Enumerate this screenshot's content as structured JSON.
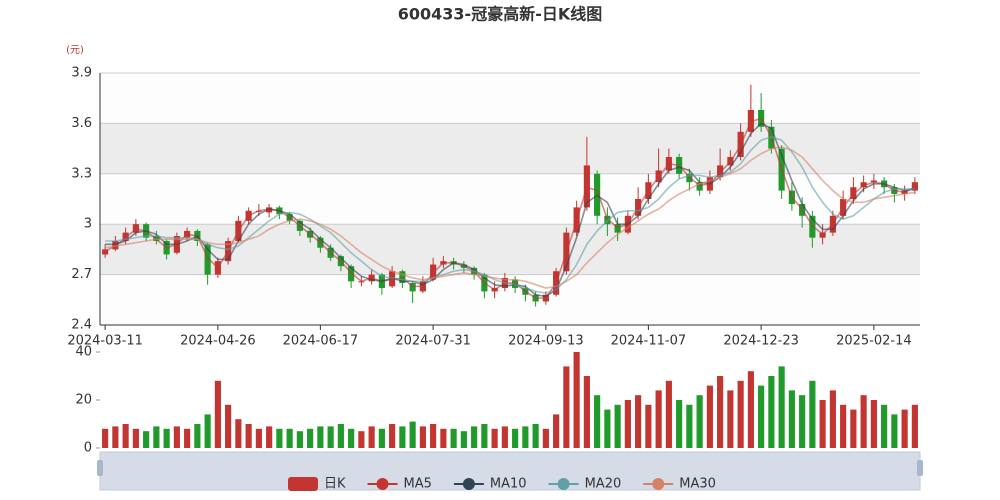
{
  "chart_data": [
    {
      "type": "candlestick",
      "title": "600433-冠豪高新-日K线图",
      "y_label": "(元)",
      "name": "日K",
      "up_color": "#c23531",
      "down_color": "#1f9a2b",
      "grid_bands": true,
      "legend": "bottom",
      "categories": [
        "2024-03-11",
        null,
        null,
        null,
        null,
        null,
        null,
        null,
        null,
        null,
        null,
        "2024-04-26",
        null,
        null,
        null,
        null,
        null,
        null,
        null,
        null,
        null,
        "2024-06-17",
        null,
        null,
        null,
        null,
        null,
        null,
        null,
        null,
        null,
        null,
        "2024-07-31",
        null,
        null,
        null,
        null,
        null,
        null,
        null,
        null,
        null,
        null,
        "2024-09-13",
        null,
        null,
        null,
        null,
        null,
        null,
        null,
        null,
        null,
        "2024-11-07",
        null,
        null,
        null,
        null,
        null,
        null,
        null,
        null,
        null,
        null,
        "2024-12-23",
        null,
        null,
        null,
        null,
        null,
        null,
        null,
        null,
        null,
        null,
        "2025-02-14",
        null,
        null,
        null,
        null
      ],
      "open": [
        2.82,
        2.85,
        2.9,
        2.95,
        3.0,
        2.93,
        2.9,
        2.83,
        2.92,
        2.96,
        2.88,
        2.7,
        2.78,
        2.9,
        3.02,
        3.08,
        3.07,
        3.1,
        3.06,
        3.02,
        2.96,
        2.92,
        2.86,
        2.81,
        2.75,
        2.66,
        2.66,
        2.7,
        2.63,
        2.72,
        2.65,
        2.6,
        2.67,
        2.76,
        2.78,
        2.76,
        2.74,
        2.7,
        2.6,
        2.62,
        2.67,
        2.62,
        2.58,
        2.54,
        2.58,
        2.72,
        2.95,
        3.1,
        3.3,
        3.05,
        3.0,
        2.95,
        3.05,
        3.15,
        3.25,
        3.32,
        3.4,
        3.3,
        3.25,
        3.2,
        3.28,
        3.35,
        3.4,
        3.55,
        3.68,
        3.58,
        3.45,
        3.2,
        3.12,
        3.05,
        2.92,
        2.95,
        3.05,
        3.15,
        3.22,
        3.25,
        3.26,
        3.22,
        3.18,
        3.2
      ],
      "close": [
        2.85,
        2.9,
        2.95,
        3.0,
        2.92,
        2.9,
        2.82,
        2.93,
        2.96,
        2.9,
        2.7,
        2.78,
        2.9,
        3.02,
        3.08,
        3.08,
        3.1,
        3.06,
        3.02,
        2.96,
        2.92,
        2.86,
        2.8,
        2.75,
        2.66,
        2.66,
        2.7,
        2.62,
        2.72,
        2.65,
        2.6,
        2.66,
        2.76,
        2.78,
        2.76,
        2.74,
        2.7,
        2.6,
        2.62,
        2.68,
        2.62,
        2.58,
        2.54,
        2.58,
        2.72,
        2.95,
        3.1,
        3.35,
        3.05,
        3.0,
        2.95,
        3.05,
        3.15,
        3.25,
        3.32,
        3.4,
        3.3,
        3.25,
        3.2,
        3.28,
        3.35,
        3.4,
        3.55,
        3.68,
        3.58,
        3.45,
        3.2,
        3.12,
        3.05,
        2.92,
        2.95,
        3.05,
        3.15,
        3.22,
        3.25,
        3.26,
        3.22,
        3.18,
        3.2,
        3.25
      ],
      "high": [
        2.88,
        2.93,
        2.98,
        3.03,
        3.01,
        2.96,
        2.91,
        2.95,
        2.98,
        2.97,
        2.89,
        2.8,
        2.92,
        3.05,
        3.1,
        3.12,
        3.12,
        3.11,
        3.07,
        3.03,
        2.98,
        2.93,
        2.88,
        2.82,
        2.76,
        2.69,
        2.73,
        2.71,
        2.75,
        2.73,
        2.66,
        2.69,
        2.8,
        2.81,
        2.8,
        2.78,
        2.75,
        2.71,
        2.66,
        2.71,
        2.69,
        2.64,
        2.6,
        2.6,
        2.74,
        2.98,
        3.14,
        3.52,
        3.32,
        3.1,
        3.04,
        3.08,
        3.22,
        3.3,
        3.45,
        3.45,
        3.42,
        3.33,
        3.28,
        3.32,
        3.45,
        3.44,
        3.6,
        3.83,
        3.78,
        3.62,
        3.47,
        3.25,
        3.16,
        3.08,
        3.0,
        3.08,
        3.2,
        3.28,
        3.29,
        3.3,
        3.28,
        3.24,
        3.23,
        3.28
      ],
      "low": [
        2.8,
        2.84,
        2.88,
        2.93,
        2.9,
        2.88,
        2.79,
        2.82,
        2.9,
        2.87,
        2.64,
        2.68,
        2.76,
        2.89,
        3.0,
        3.05,
        3.04,
        3.03,
        3.0,
        2.93,
        2.89,
        2.83,
        2.78,
        2.72,
        2.62,
        2.63,
        2.64,
        2.58,
        2.62,
        2.62,
        2.53,
        2.59,
        2.66,
        2.74,
        2.73,
        2.71,
        2.67,
        2.56,
        2.56,
        2.6,
        2.59,
        2.54,
        2.51,
        2.52,
        2.57,
        2.7,
        2.93,
        3.08,
        3.0,
        2.93,
        2.9,
        2.94,
        3.03,
        3.12,
        3.22,
        3.3,
        3.27,
        3.2,
        3.17,
        3.18,
        3.26,
        3.32,
        3.38,
        3.52,
        3.55,
        3.42,
        3.15,
        3.08,
        2.98,
        2.86,
        2.88,
        2.93,
        3.03,
        3.12,
        3.19,
        3.21,
        3.18,
        3.13,
        3.14,
        3.18
      ],
      "series": [
        {
          "name": "MA5",
          "color": "#c23531",
          "values": [
            2.84,
            2.87,
            2.92,
            2.97,
            2.96,
            2.91,
            2.86,
            2.88,
            2.94,
            2.93,
            2.8,
            2.74,
            2.84,
            2.96,
            3.05,
            3.08,
            3.09,
            3.08,
            3.04,
            2.99,
            2.94,
            2.89,
            2.83,
            2.78,
            2.71,
            2.66,
            2.68,
            2.66,
            2.67,
            2.68,
            2.63,
            2.63,
            2.71,
            2.77,
            2.77,
            2.75,
            2.72,
            2.65,
            2.61,
            2.65,
            2.65,
            2.6,
            2.56,
            2.56,
            2.65,
            2.83,
            3.02,
            3.22,
            3.2,
            3.03,
            2.98,
            3.0,
            3.1,
            3.2,
            3.28,
            3.36,
            3.35,
            3.28,
            3.23,
            3.24,
            3.31,
            3.37,
            3.47,
            3.61,
            3.63,
            3.52,
            3.33,
            3.16,
            3.09,
            2.99,
            2.94,
            3.0,
            3.1,
            3.18,
            3.23,
            3.25,
            3.24,
            3.2,
            3.19,
            3.22
          ]
        },
        {
          "name": "MA10",
          "color": "#2f4554",
          "values": [
            2.88,
            2.88,
            2.9,
            2.95,
            2.96,
            2.94,
            2.88,
            2.88,
            2.9,
            2.93,
            2.85,
            2.79,
            2.79,
            2.9,
            3.0,
            3.06,
            3.09,
            3.08,
            3.06,
            3.01,
            2.97,
            2.91,
            2.86,
            2.8,
            2.74,
            2.69,
            2.67,
            2.66,
            2.68,
            2.66,
            2.66,
            2.64,
            2.67,
            2.73,
            2.77,
            2.76,
            2.73,
            2.68,
            2.64,
            2.63,
            2.64,
            2.63,
            2.58,
            2.57,
            2.61,
            2.75,
            2.92,
            3.13,
            3.17,
            3.13,
            3.0,
            3.0,
            3.05,
            3.15,
            3.24,
            3.32,
            3.34,
            3.32,
            3.25,
            3.24,
            3.28,
            3.34,
            3.43,
            3.54,
            3.6,
            3.57,
            3.41,
            3.26,
            3.12,
            3.03,
            2.97,
            2.97,
            3.05,
            3.14,
            3.21,
            3.24,
            3.24,
            3.22,
            3.2,
            3.21
          ]
        },
        {
          "name": "MA20",
          "color": "#61a0a8",
          "values": [
            2.9,
            2.9,
            2.91,
            2.92,
            2.93,
            2.93,
            2.92,
            2.92,
            2.92,
            2.91,
            2.88,
            2.86,
            2.85,
            2.87,
            2.92,
            2.97,
            3.02,
            3.06,
            3.07,
            3.06,
            3.03,
            2.99,
            2.95,
            2.89,
            2.83,
            2.78,
            2.73,
            2.69,
            2.68,
            2.67,
            2.66,
            2.66,
            2.68,
            2.7,
            2.72,
            2.73,
            2.72,
            2.7,
            2.67,
            2.65,
            2.64,
            2.62,
            2.6,
            2.59,
            2.61,
            2.67,
            2.76,
            2.88,
            2.96,
            3.02,
            3.07,
            3.08,
            3.08,
            3.1,
            3.15,
            3.22,
            3.27,
            3.29,
            3.29,
            3.28,
            3.29,
            3.31,
            3.36,
            3.44,
            3.5,
            3.52,
            3.5,
            3.43,
            3.34,
            3.22,
            3.13,
            3.06,
            3.03,
            3.05,
            3.1,
            3.15,
            3.19,
            3.21,
            3.21,
            3.21
          ]
        },
        {
          "name": "MA30",
          "color": "#d48265",
          "values": [
            2.86,
            2.87,
            2.88,
            2.89,
            2.9,
            2.91,
            2.91,
            2.91,
            2.91,
            2.91,
            2.89,
            2.88,
            2.88,
            2.89,
            2.91,
            2.93,
            2.97,
            3.0,
            3.02,
            3.03,
            3.02,
            3.0,
            2.97,
            2.93,
            2.88,
            2.83,
            2.79,
            2.75,
            2.72,
            2.7,
            2.68,
            2.67,
            2.68,
            2.69,
            2.7,
            2.71,
            2.7,
            2.69,
            2.68,
            2.67,
            2.67,
            2.66,
            2.64,
            2.62,
            2.63,
            2.66,
            2.7,
            2.77,
            2.83,
            2.89,
            2.94,
            2.98,
            3.02,
            3.06,
            3.09,
            3.14,
            3.18,
            3.21,
            3.24,
            3.26,
            3.28,
            3.3,
            3.33,
            3.38,
            3.42,
            3.45,
            3.46,
            3.44,
            3.4,
            3.33,
            3.26,
            3.2,
            3.15,
            3.13,
            3.13,
            3.15,
            3.16,
            3.17,
            3.18,
            3.19
          ]
        }
      ],
      "ylim": [
        2.4,
        3.9
      ],
      "yticks": [
        2.4,
        2.7,
        3,
        3.3,
        3.6,
        3.9
      ]
    },
    {
      "type": "bar",
      "values": [
        8,
        9,
        10,
        8,
        7,
        9,
        8,
        9,
        8,
        10,
        14,
        28,
        18,
        12,
        10,
        8,
        9,
        8,
        8,
        7,
        8,
        9,
        9,
        10,
        8,
        7,
        9,
        8,
        10,
        9,
        11,
        9,
        10,
        8,
        8,
        7,
        9,
        10,
        8,
        9,
        8,
        9,
        10,
        8,
        14,
        34,
        40,
        30,
        22,
        16,
        18,
        20,
        22,
        18,
        24,
        28,
        20,
        18,
        22,
        26,
        30,
        24,
        28,
        32,
        26,
        30,
        34,
        24,
        22,
        28,
        20,
        24,
        18,
        16,
        22,
        20,
        18,
        14,
        16,
        18
      ],
      "ylim": [
        0,
        40
      ],
      "yticks": [
        0,
        20,
        40
      ]
    }
  ]
}
